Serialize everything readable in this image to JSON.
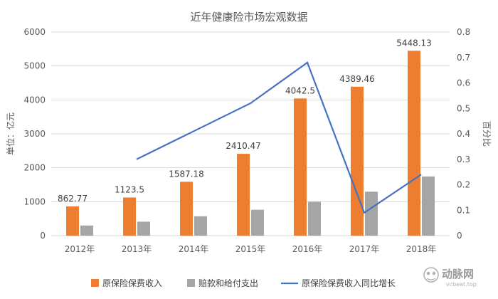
{
  "chart_data": {
    "type": "bar",
    "title": "近年健康险市场宏观数据",
    "categories": [
      "2012年",
      "2013年",
      "2014年",
      "2015年",
      "2016年",
      "2017年",
      "2018年"
    ],
    "ylabel": "单位：亿元",
    "y2label": "百分比",
    "ylim": [
      0,
      6000
    ],
    "y2lim": [
      0,
      0.8
    ],
    "yticks": [
      0,
      1000,
      2000,
      3000,
      4000,
      5000,
      6000
    ],
    "y2ticks": [
      0,
      0.1,
      0.2,
      0.3,
      0.4,
      0.5,
      0.6,
      0.7,
      0.8
    ],
    "grid": true,
    "legend_position": "bottom",
    "series": [
      {
        "name": "原保险保费收入",
        "type": "bar",
        "axis": "left",
        "color": "#ED7D31",
        "values": [
          862.77,
          1123.5,
          1587.18,
          2410.47,
          4042.5,
          4389.46,
          5448.13
        ],
        "labels": [
          "862.77",
          "1123.5",
          "1587.18",
          "2410.47",
          "4042.5",
          "4389.46",
          "5448.13"
        ]
      },
      {
        "name": "赔款和给付支出",
        "type": "bar",
        "axis": "left",
        "color": "#A5A5A5",
        "values": [
          298,
          411,
          571,
          763,
          1001,
          1295,
          1744
        ]
      },
      {
        "name": "原保险保费收入同比增长",
        "type": "line",
        "axis": "right",
        "color": "#4472C4",
        "values": [
          null,
          0.3,
          0.41,
          0.52,
          0.68,
          0.09,
          0.24
        ]
      }
    ]
  },
  "watermark": {
    "text": "动脉网",
    "url": "vcbeat.top"
  }
}
